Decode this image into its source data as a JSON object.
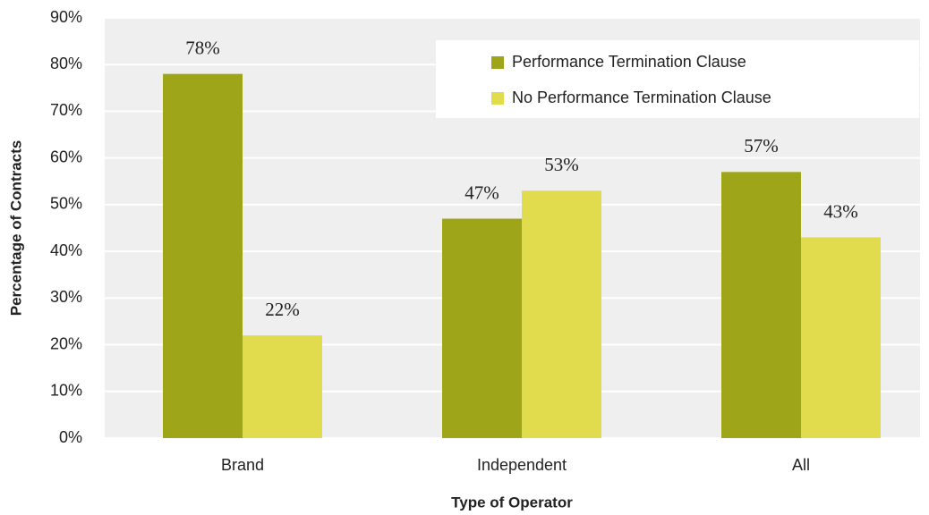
{
  "chart_data": {
    "type": "bar",
    "x_label": "Type of Operator",
    "y_label": "Percentage of Contracts",
    "categories": [
      "Brand",
      "Independent",
      "All"
    ],
    "series": [
      {
        "name": "Performance Termination Clause",
        "color": "#9ea519",
        "values": [
          78,
          47,
          57
        ],
        "value_labels": [
          "78%",
          "47%",
          "57%"
        ]
      },
      {
        "name": "No Performance Termination Clause",
        "color": "#e0dc4e",
        "values": [
          22,
          53,
          43
        ],
        "value_labels": [
          "22%",
          "53%",
          "43%"
        ]
      }
    ],
    "ylim": [
      0,
      90
    ],
    "yticks": [
      {
        "value": 0,
        "label": "0%"
      },
      {
        "value": 10,
        "label": "10%"
      },
      {
        "value": 20,
        "label": "20%"
      },
      {
        "value": 30,
        "label": "30%"
      },
      {
        "value": 40,
        "label": "40%"
      },
      {
        "value": 50,
        "label": "50%"
      },
      {
        "value": 60,
        "label": "60%"
      },
      {
        "value": 70,
        "label": "70%"
      },
      {
        "value": 80,
        "label": "80%"
      },
      {
        "value": 90,
        "label": "90%"
      }
    ],
    "grid": true,
    "legend": "top-right"
  }
}
